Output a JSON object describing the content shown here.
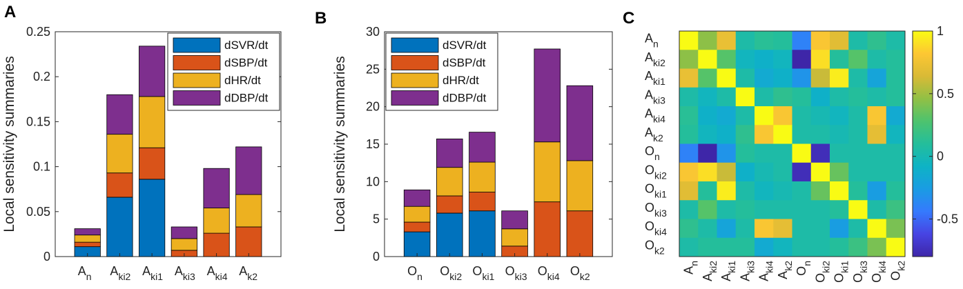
{
  "chart_data": [
    {
      "panel": "A",
      "type": "bar",
      "stacked": true,
      "categories": [
        {
          "base": "A",
          "sub": "n"
        },
        {
          "base": "A",
          "sub": "ki2"
        },
        {
          "base": "A",
          "sub": "ki1"
        },
        {
          "base": "A",
          "sub": "ki3"
        },
        {
          "base": "A",
          "sub": "ki4"
        },
        {
          "base": "A",
          "sub": "k2"
        }
      ],
      "series": [
        {
          "name": "dSVR/dt",
          "color": "#0072BD",
          "values": [
            0.011,
            0.066,
            0.086,
            0.0,
            0.0,
            0.0
          ]
        },
        {
          "name": "dSBP/dt",
          "color": "#D95319",
          "values": [
            0.005,
            0.027,
            0.035,
            0.007,
            0.026,
            0.033
          ]
        },
        {
          "name": "dHR/dt",
          "color": "#EDB120",
          "values": [
            0.008,
            0.043,
            0.057,
            0.013,
            0.028,
            0.036
          ]
        },
        {
          "name": "dDBP/dt",
          "color": "#7E2F8E",
          "values": [
            0.007,
            0.044,
            0.056,
            0.013,
            0.044,
            0.053
          ]
        }
      ],
      "ylim": [
        0,
        0.25
      ],
      "yticks": [
        "0",
        "0.05",
        "0.1",
        "0.15",
        "0.2",
        "0.25"
      ],
      "ylabel": "Local sensitivity summaries",
      "legend_position": "top-right"
    },
    {
      "panel": "B",
      "type": "bar",
      "stacked": true,
      "categories": [
        {
          "base": "O",
          "sub": "n"
        },
        {
          "base": "O",
          "sub": "ki2"
        },
        {
          "base": "O",
          "sub": "ki1"
        },
        {
          "base": "O",
          "sub": "ki3"
        },
        {
          "base": "O",
          "sub": "ki4"
        },
        {
          "base": "O",
          "sub": "k2"
        }
      ],
      "series": [
        {
          "name": "dSVR/dt",
          "color": "#0072BD",
          "values": [
            3.3,
            5.8,
            6.1,
            0.0,
            0.0,
            0.0
          ]
        },
        {
          "name": "dSBP/dt",
          "color": "#D95319",
          "values": [
            1.3,
            2.3,
            2.5,
            1.4,
            7.3,
            6.1
          ]
        },
        {
          "name": "dHR/dt",
          "color": "#EDB120",
          "values": [
            2.1,
            3.8,
            4.0,
            2.3,
            8.0,
            6.7
          ]
        },
        {
          "name": "dDBP/dt",
          "color": "#7E2F8E",
          "values": [
            2.2,
            3.8,
            4.0,
            2.4,
            12.4,
            10.0
          ]
        }
      ],
      "ylim": [
        0,
        30
      ],
      "yticks": [
        "0",
        "5",
        "10",
        "15",
        "20",
        "25",
        "30"
      ],
      "ylabel": "Local sensitivity summaries",
      "legend_position": "top-left"
    },
    {
      "panel": "C",
      "type": "heatmap",
      "labels": [
        {
          "base": "A",
          "sub": "n"
        },
        {
          "base": "A",
          "sub": "ki2"
        },
        {
          "base": "A",
          "sub": "ki1"
        },
        {
          "base": "A",
          "sub": "ki3"
        },
        {
          "base": "A",
          "sub": "ki4"
        },
        {
          "base": "A",
          "sub": "k2"
        },
        {
          "base": "O",
          "sub": "n"
        },
        {
          "base": "O",
          "sub": "ki2"
        },
        {
          "base": "O",
          "sub": "ki1"
        },
        {
          "base": "O",
          "sub": "ki3"
        },
        {
          "base": "O",
          "sub": "ki4"
        },
        {
          "base": "O",
          "sub": "k2"
        }
      ],
      "matrix": [
        [
          1.0,
          0.45,
          0.72,
          0.05,
          0.12,
          0.1,
          -0.4,
          0.8,
          0.68,
          0.05,
          0.15,
          0.05
        ],
        [
          0.45,
          1.0,
          0.3,
          -0.05,
          -0.1,
          -0.05,
          -0.8,
          0.9,
          0.1,
          0.3,
          0.05,
          0.1
        ],
        [
          0.72,
          0.3,
          1.0,
          0.05,
          -0.15,
          -0.1,
          -0.3,
          0.6,
          0.95,
          0.05,
          -0.2,
          0.1
        ],
        [
          0.05,
          -0.05,
          0.05,
          1.0,
          0.05,
          0.15,
          0.1,
          -0.1,
          0.05,
          0.1,
          0.05,
          0.1
        ],
        [
          0.12,
          -0.1,
          -0.15,
          0.05,
          1.0,
          0.8,
          0.05,
          0.0,
          -0.05,
          0.05,
          0.8,
          -0.15
        ],
        [
          0.1,
          -0.05,
          -0.1,
          0.15,
          0.8,
          1.0,
          0.05,
          0.05,
          0.0,
          0.05,
          0.7,
          -0.05
        ],
        [
          -0.4,
          -0.8,
          -0.3,
          0.1,
          0.05,
          0.05,
          1.0,
          -0.75,
          0.05,
          0.05,
          0.05,
          0.05
        ],
        [
          0.8,
          0.9,
          0.6,
          -0.1,
          0.0,
          0.05,
          -0.75,
          1.0,
          0.35,
          0.05,
          0.05,
          0.05
        ],
        [
          0.68,
          0.1,
          0.95,
          0.05,
          -0.05,
          0.0,
          0.05,
          0.35,
          1.0,
          0.1,
          -0.25,
          0.1
        ],
        [
          0.05,
          0.3,
          0.05,
          0.1,
          0.05,
          0.05,
          0.05,
          0.05,
          0.1,
          1.0,
          0.05,
          0.2
        ],
        [
          0.15,
          0.05,
          -0.2,
          0.05,
          0.8,
          0.7,
          0.05,
          0.05,
          -0.25,
          0.05,
          1.0,
          0.4
        ],
        [
          0.05,
          0.1,
          0.1,
          0.1,
          -0.15,
          -0.05,
          0.05,
          0.05,
          0.1,
          0.2,
          0.4,
          1.0
        ]
      ],
      "colorbar": {
        "range": [
          -0.8,
          1.0
        ],
        "ticks": [
          "1",
          "0.5",
          "0",
          "-0.5"
        ],
        "tick_values": [
          1,
          0.5,
          0,
          -0.5
        ],
        "colormap": "parula"
      }
    }
  ],
  "panel_labels": [
    "A",
    "B",
    "C"
  ]
}
